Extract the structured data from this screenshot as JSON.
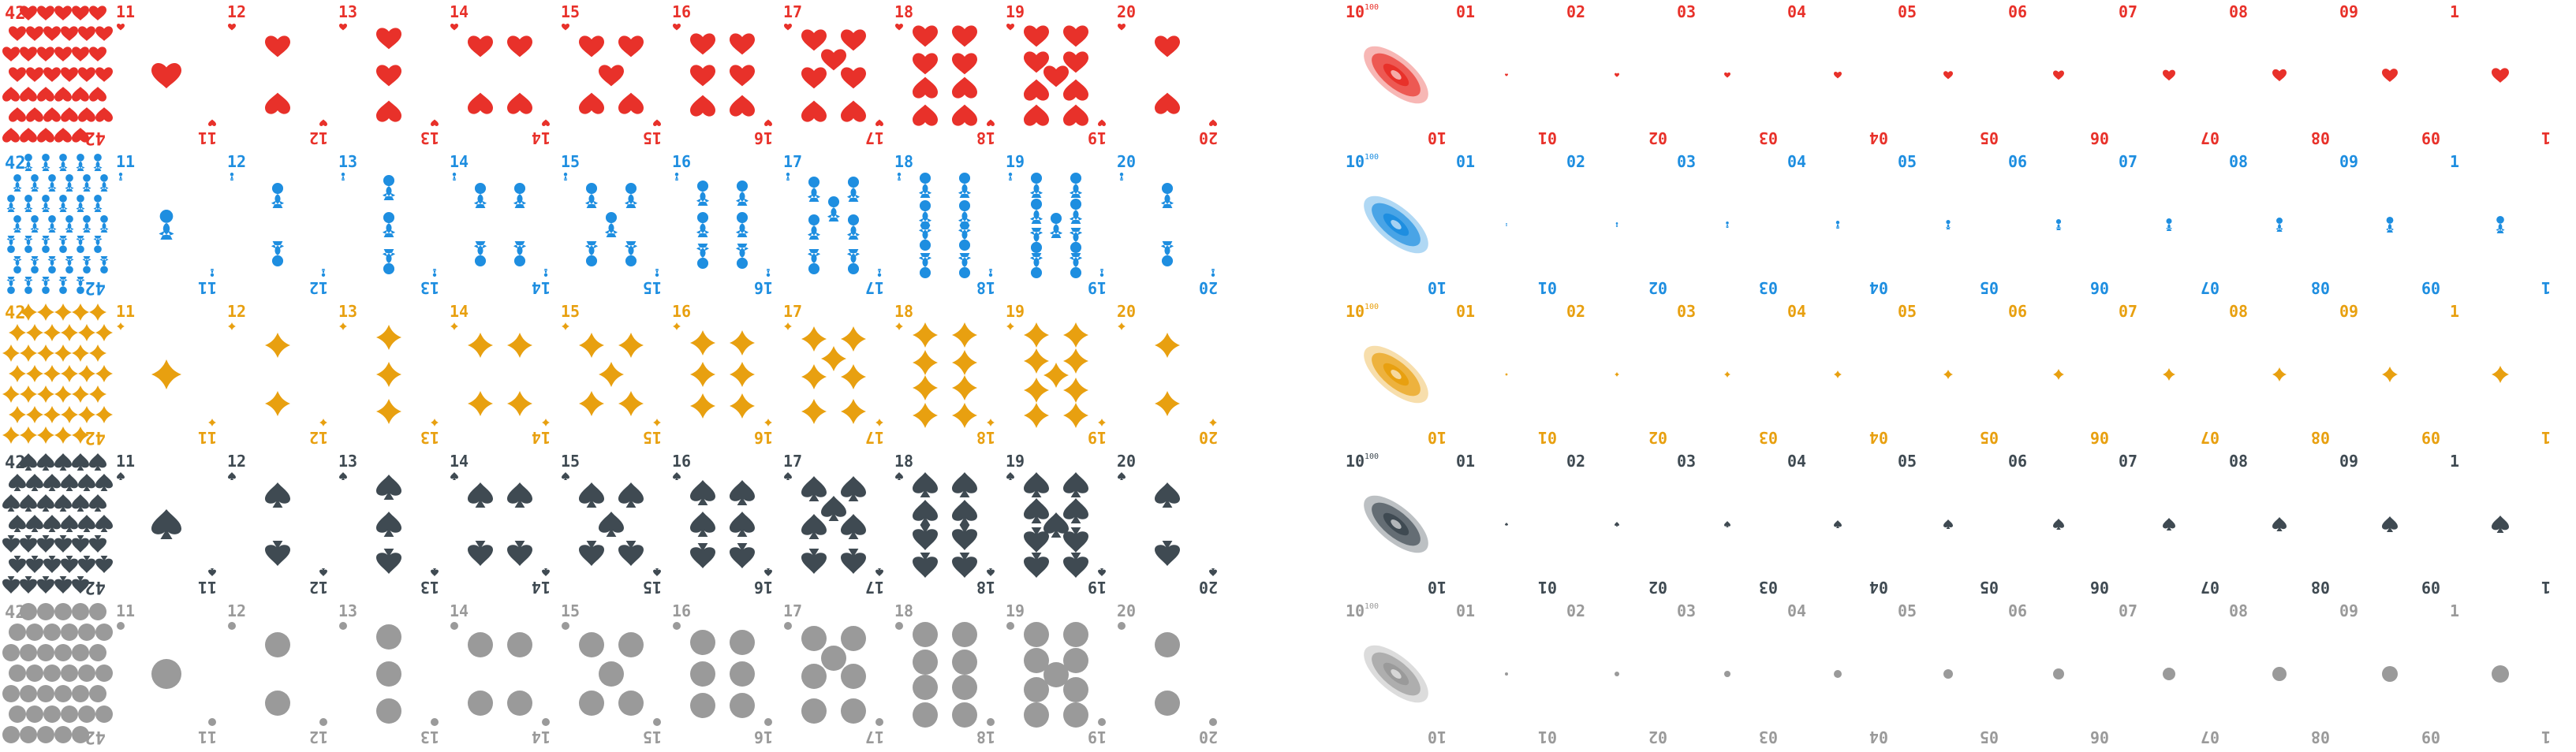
{
  "sheet": {
    "rows": [
      {
        "suit": "hearts",
        "color": "#e8312a"
      },
      {
        "suit": "clubs",
        "color": "#1e8ee0"
      },
      {
        "suit": "diamonds",
        "color": "#e8a010"
      },
      {
        "suit": "spades",
        "color": "#3f4a52"
      },
      {
        "suit": "pips",
        "color": "#9a9a9a"
      }
    ],
    "big_card_label": "42",
    "numbered_cards": [
      {
        "label": "11",
        "pips": 1
      },
      {
        "label": "12",
        "pips": 2
      },
      {
        "label": "13",
        "pips": 3
      },
      {
        "label": "14",
        "pips": 4
      },
      {
        "label": "15",
        "pips": 5
      },
      {
        "label": "16",
        "pips": 6
      },
      {
        "label": "17",
        "pips": 7
      },
      {
        "label": "18",
        "pips": 8
      },
      {
        "label": "19",
        "pips": 9
      },
      {
        "label": "20",
        "pips": 2
      }
    ],
    "special_card_label": "10",
    "special_card_superscript": "100",
    "small_cards": [
      "01",
      "02",
      "03",
      "04",
      "05",
      "06",
      "07",
      "08",
      "09",
      "1"
    ]
  }
}
